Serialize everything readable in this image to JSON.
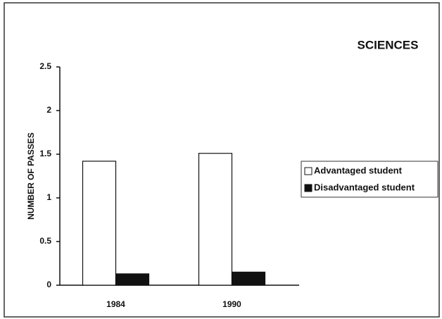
{
  "chart_data": {
    "type": "bar",
    "title": "SCIENCES",
    "y_label": "NUMBER OF PASSES",
    "categories": [
      "1984",
      "1990"
    ],
    "series": [
      {
        "name": "Advantaged student",
        "color": "#ffffff",
        "values": [
          1.42,
          1.51
        ]
      },
      {
        "name": "Disadvantaged student",
        "color": "#111111",
        "values": [
          0.13,
          0.15
        ]
      }
    ],
    "ylim": [
      0,
      2.5
    ],
    "yticks": [
      0,
      0.5,
      1,
      1.5,
      2,
      2.5
    ],
    "grid": false,
    "legend": "right"
  }
}
